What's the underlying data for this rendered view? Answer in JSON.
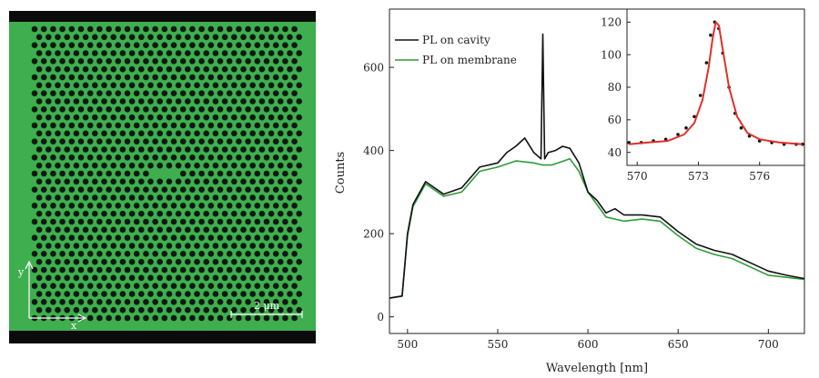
{
  "micrograph": {
    "axis_y_label": "y",
    "axis_x_label": "x",
    "scale_bar_label": "2 μm",
    "colors": {
      "background": "#0b0b0b",
      "membrane": "#3fae4f",
      "hole": "#0e1a10"
    }
  },
  "chart_data": [
    {
      "type": "line",
      "title": "",
      "xlabel": "Wavelength [nm]",
      "ylabel": "Counts",
      "xlim": [
        490,
        720
      ],
      "ylim": [
        -40,
        740
      ],
      "xticks": [
        500,
        550,
        600,
        650,
        700
      ],
      "yticks": [
        0,
        200,
        400,
        600
      ],
      "legend_position": "top-left",
      "series": [
        {
          "name": "PL on cavity",
          "color": "#111111",
          "x": [
            490,
            497,
            500,
            503,
            510,
            520,
            530,
            540,
            550,
            555,
            560,
            565,
            570,
            574,
            575,
            576,
            578,
            582,
            586,
            590,
            595,
            600,
            605,
            610,
            615,
            620,
            630,
            640,
            650,
            660,
            670,
            680,
            690,
            700,
            710,
            720
          ],
          "y": [
            45,
            50,
            200,
            270,
            325,
            295,
            310,
            360,
            370,
            395,
            410,
            430,
            395,
            380,
            680,
            380,
            395,
            400,
            410,
            405,
            370,
            300,
            280,
            250,
            260,
            245,
            245,
            240,
            205,
            175,
            160,
            150,
            130,
            110,
            100,
            92
          ]
        },
        {
          "name": "PL on membrane",
          "color": "#2e9b3b",
          "x": [
            490,
            497,
            500,
            503,
            510,
            520,
            530,
            540,
            550,
            560,
            570,
            575,
            580,
            590,
            595,
            600,
            605,
            610,
            620,
            630,
            640,
            650,
            660,
            670,
            680,
            690,
            700,
            710,
            720
          ],
          "y": [
            45,
            50,
            195,
            265,
            320,
            290,
            300,
            350,
            360,
            375,
            370,
            365,
            365,
            380,
            350,
            300,
            270,
            240,
            230,
            235,
            230,
            195,
            165,
            150,
            140,
            120,
            100,
            95,
            90
          ]
        }
      ]
    },
    {
      "type": "scatter",
      "title": "",
      "xlabel": "",
      "ylabel": "",
      "xlim": [
        569.5,
        578.2
      ],
      "ylim": [
        32,
        128
      ],
      "xticks": [
        570,
        573,
        576
      ],
      "yticks": [
        40,
        60,
        80,
        100,
        120
      ],
      "series": [
        {
          "name": "",
          "color": "#111111",
          "x": [
            569.6,
            570.2,
            570.8,
            571.4,
            572.0,
            572.4,
            572.8,
            573.1,
            573.4,
            573.6,
            573.8,
            574.0,
            574.2,
            574.5,
            574.8,
            575.1,
            575.5,
            576.0,
            576.6,
            577.2,
            577.8,
            578.1
          ],
          "y": [
            46,
            46,
            47,
            48,
            51,
            55,
            62,
            75,
            95,
            112,
            120,
            116,
            101,
            80,
            64,
            55,
            50,
            47,
            46,
            45,
            45,
            45
          ]
        },
        {
          "name": "",
          "type": "line",
          "color": "#e0302a",
          "x": [
            569.6,
            570.5,
            571.5,
            572.3,
            572.8,
            573.2,
            573.5,
            573.7,
            573.85,
            574.0,
            574.2,
            574.5,
            574.9,
            575.4,
            576.0,
            577.0,
            578.1
          ],
          "y": [
            45,
            46,
            47,
            51,
            58,
            72,
            92,
            110,
            120,
            118,
            103,
            80,
            62,
            52,
            48,
            46,
            45
          ]
        }
      ]
    }
  ]
}
